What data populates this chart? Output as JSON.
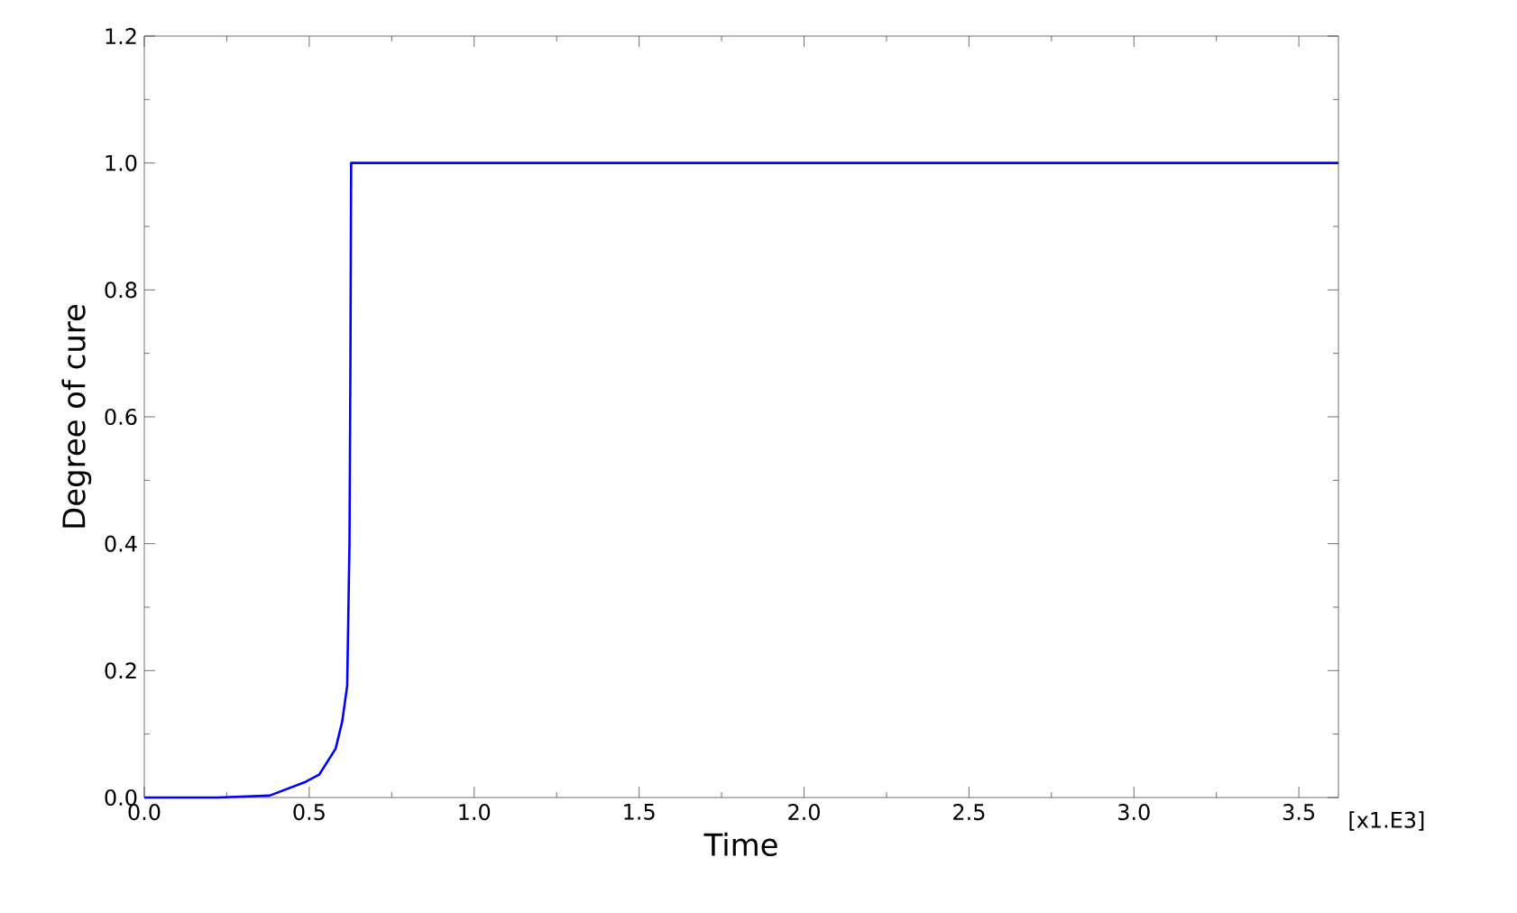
{
  "chart_data": {
    "type": "line",
    "xlabel": "Time",
    "ylabel": "Degree of cure",
    "annotations": [
      "[x1.E3]"
    ],
    "xlim": [
      0,
      3.62
    ],
    "ylim": [
      0,
      1.2
    ],
    "xticks": [
      {
        "value": 0,
        "label": "0.0"
      },
      {
        "value": 0.5,
        "label": "0.5"
      },
      {
        "value": 1,
        "label": "1.0"
      },
      {
        "value": 1.5,
        "label": "1.5"
      },
      {
        "value": 2,
        "label": "2.0"
      },
      {
        "value": 2.5,
        "label": "2.5"
      },
      {
        "value": 3,
        "label": "3.0"
      },
      {
        "value": 3.5,
        "label": "3.5"
      }
    ],
    "yticks": [
      {
        "value": 0,
        "label": "0.0"
      },
      {
        "value": 0.2,
        "label": "0.2"
      },
      {
        "value": 0.4,
        "label": "0.4"
      },
      {
        "value": 0.6,
        "label": "0.6"
      },
      {
        "value": 0.8,
        "label": "0.8"
      },
      {
        "value": 1,
        "label": "1.0"
      },
      {
        "value": 1.2,
        "label": "1.2"
      }
    ],
    "x": [
      0,
      0.22,
      0.38,
      0.49,
      0.53,
      0.58,
      0.6,
      0.615,
      0.622,
      0.625,
      0.627,
      3.62
    ],
    "series": [
      {
        "color": "#0000ff",
        "values": [
          0,
          0,
          0.003,
          0.025,
          0.036,
          0.077,
          0.12,
          0.176,
          0.4,
          0.7,
          1.0,
          1.0
        ]
      }
    ],
    "marker": "none",
    "line_style": "solid",
    "grid": false
  }
}
